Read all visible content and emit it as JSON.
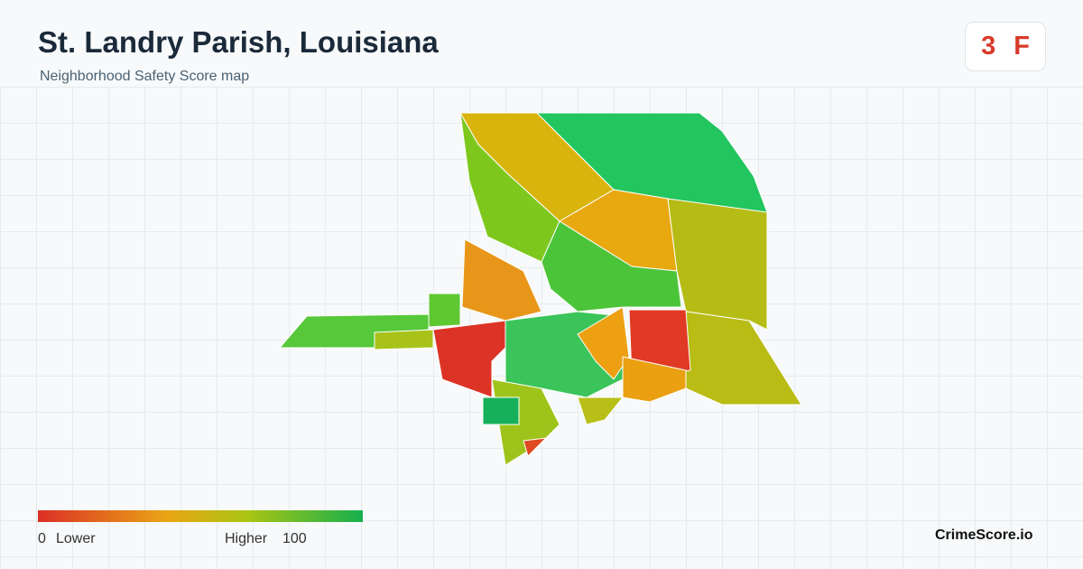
{
  "header": {
    "title": "St. Landry Parish, Louisiana",
    "subtitle": "Neighborhood Safety Score map",
    "score": 3,
    "grade": "F"
  },
  "legend": {
    "min": 0,
    "min_label": "Lower",
    "max_label": "Higher",
    "max": 100
  },
  "footer": {
    "brand": "CrimeScore.io"
  }
}
